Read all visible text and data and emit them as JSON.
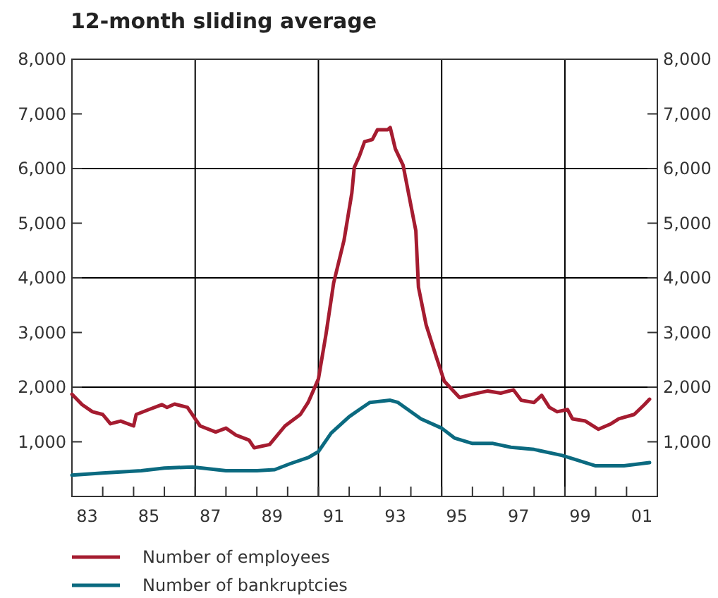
{
  "chart_data": {
    "type": "line",
    "title": "12-month sliding average",
    "xlim": [
      "1983",
      "2002"
    ],
    "xticks": [
      {
        "value": "1983",
        "label": null
      },
      {
        "value": "1983-07",
        "label": "83"
      },
      {
        "value": "1984",
        "label": null
      },
      {
        "value": "1985",
        "label": null
      },
      {
        "value": "1985-07",
        "label": "85"
      },
      {
        "value": "1986",
        "label": null
      },
      {
        "value": "1987",
        "label": null
      },
      {
        "value": "1987-07",
        "label": "87"
      },
      {
        "value": "1988",
        "label": null
      },
      {
        "value": "1989",
        "label": null
      },
      {
        "value": "1989-07",
        "label": "89"
      },
      {
        "value": "1990",
        "label": null
      },
      {
        "value": "1991",
        "label": null
      },
      {
        "value": "1991-07",
        "label": "91"
      },
      {
        "value": "1992",
        "label": null
      },
      {
        "value": "1993",
        "label": null
      },
      {
        "value": "1993-07",
        "label": "93"
      },
      {
        "value": "1994",
        "label": null
      },
      {
        "value": "1995",
        "label": null
      },
      {
        "value": "1995-07",
        "label": "95"
      },
      {
        "value": "1996",
        "label": null
      },
      {
        "value": "1997",
        "label": null
      },
      {
        "value": "1997-07",
        "label": "97"
      },
      {
        "value": "1998",
        "label": null
      },
      {
        "value": "1999",
        "label": null
      },
      {
        "value": "1999-07",
        "label": "99"
      },
      {
        "value": "2000",
        "label": null
      },
      {
        "value": "2001",
        "label": null
      },
      {
        "value": "2001-07",
        "label": "01"
      },
      {
        "value": "2002",
        "label": null
      }
    ],
    "ylim": [
      0,
      8000
    ],
    "yticks": [
      {
        "value": 1000,
        "label": "1,000"
      },
      {
        "value": 2000,
        "label": "2,000"
      },
      {
        "value": 3000,
        "label": "3,000"
      },
      {
        "value": 4000,
        "label": "4,000"
      },
      {
        "value": 5000,
        "label": "5,000"
      },
      {
        "value": 6000,
        "label": "6,000"
      },
      {
        "value": 7000,
        "label": "7,000"
      },
      {
        "value": 8000,
        "label": "8,000"
      }
    ],
    "y2lim": [
      0,
      8000
    ],
    "y2ticks": [
      {
        "value": 1000,
        "label": "1,000"
      },
      {
        "value": 2000,
        "label": "2,000"
      },
      {
        "value": 3000,
        "label": "3,000"
      },
      {
        "value": 4000,
        "label": "4,000"
      },
      {
        "value": 5000,
        "label": "5,000"
      },
      {
        "value": 6000,
        "label": "6,000"
      },
      {
        "value": 7000,
        "label": "7,000"
      },
      {
        "value": 8000,
        "label": "8,000"
      }
    ],
    "ref_lines": [
      {
        "axis": "x",
        "value": "1987",
        "color": "#000000"
      },
      {
        "axis": "x",
        "value": "1991",
        "color": "#000000"
      },
      {
        "axis": "x",
        "value": "1995",
        "color": "#000000"
      },
      {
        "axis": "x",
        "value": "1999",
        "color": "#000000"
      },
      {
        "axis": "y",
        "value": 2000,
        "color": "#000000"
      },
      {
        "axis": "y",
        "value": 4000,
        "color": "#000000"
      },
      {
        "axis": "y",
        "value": 6000,
        "color": "#000000"
      }
    ],
    "legend": "bottom",
    "line_style": "solid",
    "series": [
      {
        "name": "Number of employees",
        "color": "#a51c30",
        "x": [
          "1983-01",
          "1983-05",
          "1983-09",
          "1984-01",
          "1984-04",
          "1984-08",
          "1985-01",
          "1985-02",
          "1985-07",
          "1985-12",
          "1986-02",
          "1986-05",
          "1986-10",
          "1987-01",
          "1987-03",
          "1987-09",
          "1988-01",
          "1988-05",
          "1988-10",
          "1988-12",
          "1989-06",
          "1989-12",
          "1990-06",
          "1990-09",
          "1991-01",
          "1991-04",
          "1991-07",
          "1991-11",
          "1992-02",
          "1992-03",
          "1992-05",
          "1992-07",
          "1992-10",
          "1992-12",
          "1993-04",
          "1993-05",
          "1993-07",
          "1993-10",
          "1994-03",
          "1994-04",
          "1994-07",
          "1994-11",
          "1995-02",
          "1995-08",
          "1996-01",
          "1996-07",
          "1996-12",
          "1997-05",
          "1997-08",
          "1998-01",
          "1998-04",
          "1998-07",
          "1998-10",
          "1999-02",
          "1999-04",
          "1999-09",
          "2000-02",
          "2000-07",
          "2000-10",
          "2001-04",
          "2001-08",
          "2001-10"
        ],
        "values": [
          1870,
          1680,
          1550,
          1500,
          1330,
          1380,
          1290,
          1500,
          1590,
          1680,
          1630,
          1690,
          1630,
          1420,
          1290,
          1180,
          1250,
          1120,
          1030,
          890,
          950,
          1290,
          1500,
          1720,
          2150,
          2970,
          3910,
          4690,
          5550,
          6020,
          6230,
          6490,
          6530,
          6710,
          6710,
          6750,
          6360,
          6060,
          4860,
          3830,
          3140,
          2540,
          2110,
          1810,
          1870,
          1930,
          1890,
          1950,
          1760,
          1720,
          1850,
          1630,
          1550,
          1590,
          1420,
          1380,
          1230,
          1330,
          1420,
          1500,
          1680,
          1780
        ]
      },
      {
        "name": "Number of bankruptcies",
        "color": "#0b6a80",
        "x": [
          "1983-01",
          "1984-01",
          "1985-04",
          "1986-01",
          "1986-12",
          "1988-01",
          "1989-01",
          "1989-08",
          "1990-02",
          "1990-09",
          "1991-01",
          "1991-06",
          "1992-01",
          "1992-05",
          "1992-09",
          "1993-05",
          "1993-08",
          "1994-05",
          "1995-01",
          "1995-06",
          "1996-01",
          "1996-09",
          "1997-04",
          "1998-01",
          "1998-12",
          "2000-01",
          "2000-12",
          "2001-10"
        ],
        "values": [
          390,
          430,
          470,
          520,
          540,
          470,
          470,
          490,
          600,
          710,
          820,
          1160,
          1460,
          1590,
          1720,
          1760,
          1720,
          1420,
          1250,
          1070,
          970,
          970,
          900,
          860,
          750,
          560,
          560,
          620
        ]
      }
    ]
  }
}
